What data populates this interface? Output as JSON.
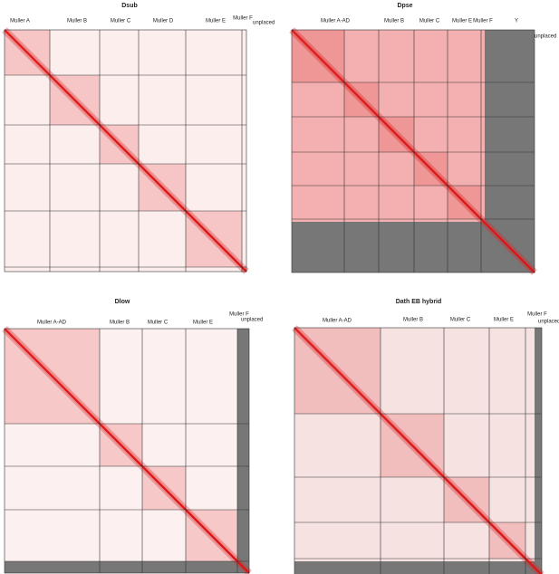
{
  "panels": [
    {
      "title": "Dsub",
      "labels": [
        "Muller A",
        "Muller B",
        "Muller C",
        "Muller D",
        "Muller E",
        "Muller F",
        "unplaced"
      ]
    },
    {
      "title": "Dpse",
      "labels": [
        "Muller A-AD",
        "Muller B",
        "Muller C",
        "Muller E",
        "Muller F",
        "Y",
        "unplaced"
      ]
    },
    {
      "title": "Dlow",
      "labels": [
        "Muller A-AD",
        "Muller B",
        "Muller C",
        "Muller E",
        "Muller F",
        "unplaced"
      ]
    },
    {
      "title": "Dath EB hybrid",
      "labels": [
        "Muller A-AD",
        "Muller B",
        "Muller C",
        "Muller E",
        "Muller F",
        "unplaced"
      ]
    }
  ]
}
